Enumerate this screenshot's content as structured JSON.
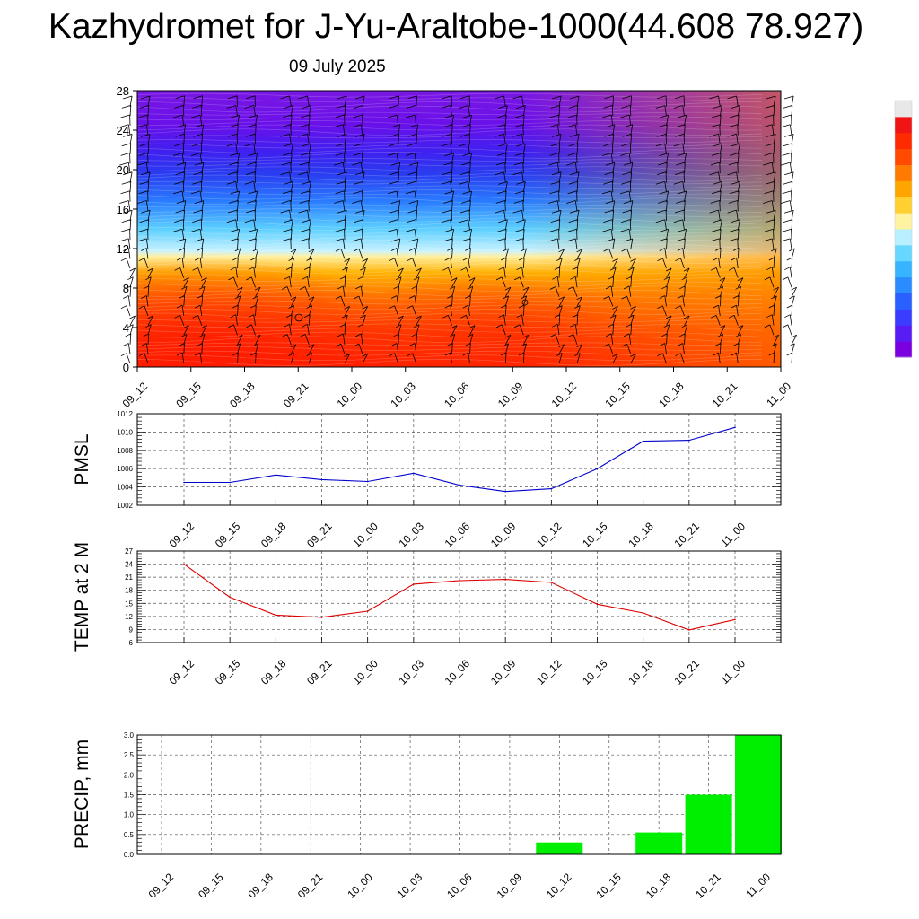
{
  "title": "Kazhydromet for J-Yu-Araltobe-1000(44.608 78.927)",
  "subtitle": "09 July 2025",
  "time_labels": [
    "09_12",
    "09_15",
    "09_18",
    "09_21",
    "10_00",
    "10_03",
    "10_06",
    "10_09",
    "10_12",
    "10_15",
    "10_18",
    "10_21",
    "11_00"
  ],
  "colorbar_colors": [
    "#7a00e0",
    "#5a1cf4",
    "#3a3cff",
    "#2a60ff",
    "#2a8cff",
    "#36b4ff",
    "#66d8ff",
    "#b8f0ff",
    "#fff2a0",
    "#ffd030",
    "#ffa500",
    "#ff7a00",
    "#ff4a00",
    "#ff2a00",
    "#f01414",
    "#e8e8e8"
  ],
  "chart_data": [
    {
      "type": "heatmap",
      "title": "",
      "xlabel": "",
      "ylabel": "",
      "x": [
        "09_12",
        "09_15",
        "09_18",
        "09_21",
        "10_00",
        "10_03",
        "10_06",
        "10_09",
        "10_12",
        "10_15",
        "10_18",
        "10_21",
        "11_00"
      ],
      "y_ticks": [
        0,
        4,
        8,
        12,
        16,
        20,
        24,
        28
      ],
      "ylim": [
        0,
        28
      ],
      "description_colors": "warm (red/orange/yellow) below 12, blue to violet above",
      "legend": "right-side colorbar without tick labels",
      "grid": false
    },
    {
      "type": "line",
      "ylabel": "PMSL",
      "x": [
        "09_12",
        "09_15",
        "09_18",
        "09_21",
        "10_00",
        "10_03",
        "10_06",
        "10_09",
        "10_12",
        "10_15",
        "10_18",
        "10_21",
        "11_00"
      ],
      "series": [
        {
          "values": [
            1004.5,
            1004.5,
            1005.3,
            1004.8,
            1004.6,
            1005.5,
            1004.2,
            1003.5,
            1003.8,
            1006.0,
            1009.0,
            1009.1,
            1010.5
          ],
          "color": "#0000cc"
        }
      ],
      "ylim": [
        1002,
        1012
      ],
      "y_ticks": [
        1002,
        1004,
        1006,
        1008,
        1010,
        1012
      ],
      "grid": true
    },
    {
      "type": "line",
      "ylabel": "TEMP at 2 M",
      "x": [
        "09_12",
        "09_15",
        "09_18",
        "09_21",
        "10_00",
        "10_03",
        "10_06",
        "10_09",
        "10_12",
        "10_15",
        "10_18",
        "10_21",
        "11_00"
      ],
      "series": [
        {
          "values": [
            24.0,
            16.4,
            12.3,
            11.8,
            13.2,
            19.4,
            20.2,
            20.5,
            19.8,
            14.8,
            12.8,
            8.9,
            11.3
          ],
          "color": "#dd0000"
        }
      ],
      "ylim": [
        6,
        27
      ],
      "y_ticks": [
        6,
        9,
        12,
        15,
        18,
        21,
        24,
        27
      ],
      "grid": true
    },
    {
      "type": "bar",
      "ylabel": "PRECIP, mm",
      "categories": [
        "09_12",
        "09_15",
        "09_18",
        "09_21",
        "10_00",
        "10_03",
        "10_06",
        "10_09",
        "10_12",
        "10_15",
        "10_18",
        "10_21",
        "11_00"
      ],
      "values": [
        0,
        0,
        0,
        0,
        0,
        0,
        0,
        0,
        0.3,
        0,
        0.55,
        1.5,
        3.0
      ],
      "color": "#00ee00",
      "ylim": [
        0,
        3.0
      ],
      "y_ticks": [
        "0.0",
        "0.5",
        "1.0",
        "1.5",
        "2.0",
        "2.5",
        "3.0"
      ],
      "grid": true
    }
  ]
}
